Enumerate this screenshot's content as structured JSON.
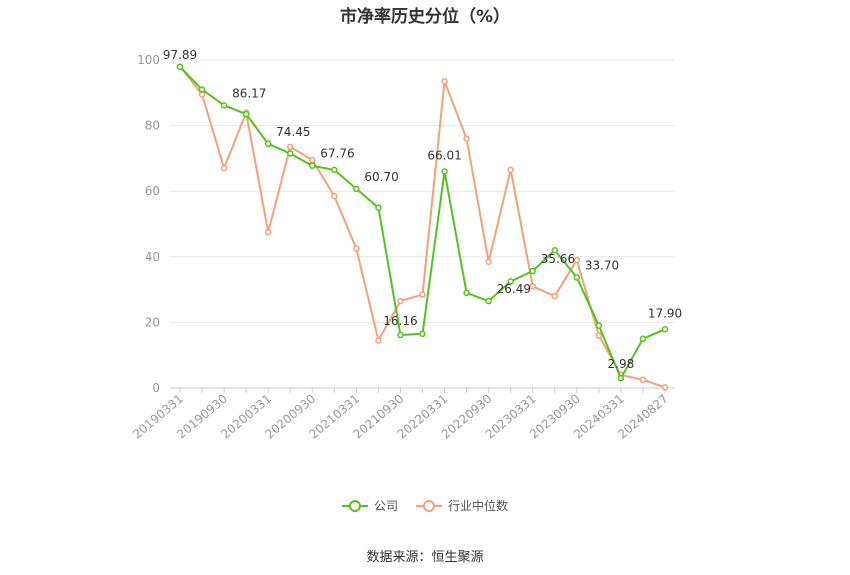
{
  "chart_data": {
    "type": "line",
    "title": "市净率历史分位（%）",
    "x": [
      "20190331",
      "20190630",
      "20190930",
      "20191231",
      "20200331",
      "20200630",
      "20200930",
      "20201231",
      "20210331",
      "20210630",
      "20210930",
      "20211231",
      "20220331",
      "20220630",
      "20220930",
      "20221231",
      "20230331",
      "20230630",
      "20230930",
      "20231231",
      "20240331",
      "20240630",
      "20240827"
    ],
    "x_tick_labels": [
      "20190331",
      "20190930",
      "20200331",
      "20200930",
      "20210331",
      "20210930",
      "20220331",
      "20220930",
      "20230331",
      "20230930",
      "20240331",
      "20240827"
    ],
    "ylim": [
      0,
      100
    ],
    "yticks": [
      0,
      20,
      40,
      60,
      80,
      100
    ],
    "grid": true,
    "legend_position": "bottom",
    "series": [
      {
        "name": "公司",
        "color": "#52c41a",
        "values": [
          97.89,
          91.0,
          86.17,
          83.5,
          74.45,
          71.5,
          67.76,
          66.5,
          60.7,
          55.0,
          16.16,
          16.5,
          66.01,
          29.0,
          26.49,
          32.5,
          35.66,
          42.0,
          33.7,
          19.0,
          2.98,
          15.0,
          17.9
        ],
        "labels": {
          "0": "97.89",
          "2": "86.17",
          "4": "74.45",
          "6": "67.76",
          "8": "60.70",
          "10": "16.16",
          "12": "66.01",
          "14": "26.49",
          "16": "35.66",
          "18": "33.70",
          "20": "2.98",
          "22": "17.90"
        }
      },
      {
        "name": "行业中位数",
        "color": "#f4a07a",
        "values": [
          98.0,
          89.5,
          67.0,
          84.0,
          47.5,
          73.5,
          69.5,
          58.5,
          42.5,
          14.5,
          26.5,
          28.5,
          93.5,
          76.0,
          38.5,
          66.5,
          31.0,
          28.0,
          39.0,
          16.0,
          4.0,
          2.5,
          0.2
        ]
      }
    ]
  },
  "source": "数据来源：恒生聚源"
}
